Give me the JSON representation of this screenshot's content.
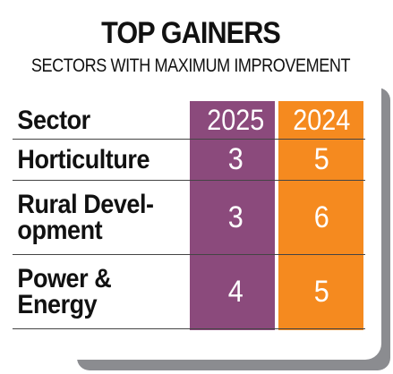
{
  "title": "TOP GAINERS",
  "subtitle": "SECTORS WITH MAXIMUM IMPROVEMENT",
  "colors": {
    "col_2025": "#8b4a7c",
    "col_2024": "#f58a1f",
    "shadow": "#8b8c90"
  },
  "chart_data": {
    "type": "table",
    "title": "TOP GAINERS",
    "subtitle": "SECTORS WITH MAXIMUM IMPROVEMENT",
    "columns": [
      "Sector",
      "2025",
      "2024"
    ],
    "rows": [
      {
        "sector": "Horticulture",
        "sector_lines": [
          "Horticulture"
        ],
        "v2025": "3",
        "v2024": "5"
      },
      {
        "sector": "Rural Development",
        "sector_lines": [
          "Rural Devel-",
          "opment"
        ],
        "v2025": "3",
        "v2024": "6"
      },
      {
        "sector": "Power & Energy",
        "sector_lines": [
          "Power &",
          "Energy"
        ],
        "v2025": "4",
        "v2024": "5"
      }
    ]
  }
}
